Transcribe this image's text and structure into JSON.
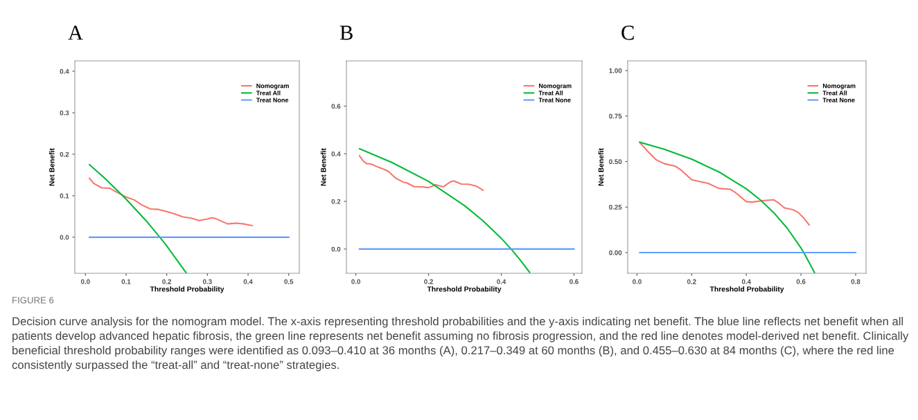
{
  "chart_data": [
    {
      "type": "line",
      "title": "A",
      "xlabel": "Threshold Probability",
      "ylabel": "Net Benefit",
      "legend": "top right",
      "grid": false,
      "xlim": [
        -0.026,
        0.526
      ],
      "xticks": [
        {
          "value": 0,
          "label": "0.0"
        },
        {
          "value": 0.1,
          "label": "0.1"
        },
        {
          "value": 0.2,
          "label": "0.2"
        },
        {
          "value": 0.3,
          "label": "0.3"
        },
        {
          "value": 0.4,
          "label": "0.4"
        },
        {
          "value": 0.5,
          "label": "0.5"
        }
      ],
      "ylim": [
        -0.087,
        0.425
      ],
      "yticks": [
        {
          "value": 0,
          "label": "0.0"
        },
        {
          "value": 0.1,
          "label": "0.1"
        },
        {
          "value": 0.2,
          "label": "0.2"
        },
        {
          "value": 0.3,
          "label": "0.3"
        },
        {
          "value": 0.4,
          "label": "0.4"
        }
      ],
      "series": [
        {
          "name": "Nomogram",
          "color": "#f8766d",
          "x": [
            0.01,
            0.02,
            0.04,
            0.06,
            0.08,
            0.1,
            0.12,
            0.14,
            0.16,
            0.18,
            0.2,
            0.22,
            0.24,
            0.26,
            0.28,
            0.3,
            0.31,
            0.32,
            0.35,
            0.37,
            0.39,
            0.41
          ],
          "values": [
            0.142,
            0.13,
            0.119,
            0.118,
            0.107,
            0.097,
            0.09,
            0.077,
            0.068,
            0.067,
            0.062,
            0.056,
            0.049,
            0.046,
            0.04,
            0.044,
            0.047,
            0.045,
            0.032,
            0.034,
            0.032,
            0.028
          ]
        },
        {
          "name": "Treat All",
          "color": "#00ba38",
          "x": [
            0.01,
            0.05,
            0.1,
            0.15,
            0.183,
            0.2,
            0.248
          ],
          "values": [
            0.175,
            0.14,
            0.092,
            0.039,
            0.0,
            -0.021,
            -0.086
          ]
        },
        {
          "name": "Treat None",
          "color": "#619cff",
          "x": [
            0.01,
            0.5
          ],
          "values": [
            0,
            0
          ]
        }
      ],
      "annotations": [
        "FIGURE 6",
        "Decision curve analysis for the nomogram model. The x-axis representing threshold probabilities and the y-axis indicating net benefit. The blue line reflects net benefit when all patients develop advanced hepatic fibrosis, the green line represents net benefit assuming no fibrosis progression, and the red line denotes model-derived net benefit. Clinically beneficial threshold probability ranges were identified as 0.093–0.410 at 36 months (A), 0.217–0.349 at 60 months (B), and 0.455–0.630 at 84 months (C), where the red line consistently surpassed the “treat-all” and “treat-none” strategies."
      ]
    },
    {
      "type": "line",
      "title": "B",
      "xlabel": "Threshold Probability",
      "ylabel": "Net Benefit",
      "legend": "top right",
      "grid": false,
      "xlim": [
        -0.026,
        0.622
      ],
      "xticks": [
        {
          "value": 0,
          "label": "0.0"
        },
        {
          "value": 0.2,
          "label": "0.2"
        },
        {
          "value": 0.4,
          "label": "0.4"
        },
        {
          "value": 0.6,
          "label": "0.6"
        }
      ],
      "ylim": [
        -0.102,
        0.79
      ],
      "yticks": [
        {
          "value": 0,
          "label": "0.0"
        },
        {
          "value": 0.2,
          "label": "0.2"
        },
        {
          "value": 0.4,
          "label": "0.4"
        },
        {
          "value": 0.6,
          "label": "0.6"
        }
      ],
      "series": [
        {
          "name": "Nomogram",
          "color": "#f8766d",
          "x": [
            0.01,
            0.02,
            0.03,
            0.04,
            0.06,
            0.08,
            0.09,
            0.11,
            0.13,
            0.14,
            0.16,
            0.18,
            0.2,
            0.22,
            0.24,
            0.26,
            0.27,
            0.29,
            0.31,
            0.33,
            0.35
          ],
          "values": [
            0.392,
            0.37,
            0.358,
            0.358,
            0.345,
            0.333,
            0.325,
            0.297,
            0.281,
            0.278,
            0.262,
            0.261,
            0.258,
            0.27,
            0.261,
            0.282,
            0.286,
            0.273,
            0.272,
            0.265,
            0.247
          ]
        },
        {
          "name": "Treat All",
          "color": "#00ba38",
          "x": [
            0.01,
            0.1,
            0.2,
            0.3,
            0.35,
            0.4,
            0.427,
            0.45,
            0.478
          ],
          "values": [
            0.421,
            0.363,
            0.284,
            0.181,
            0.118,
            0.045,
            0.0,
            -0.042,
            -0.098
          ]
        },
        {
          "name": "Treat None",
          "color": "#619cff",
          "x": [
            0.01,
            0.6
          ],
          "values": [
            0,
            0
          ]
        }
      ]
    },
    {
      "type": "line",
      "title": "C",
      "xlabel": "Threshold Probability",
      "ylabel": "Net Benefit",
      "legend": "top right",
      "grid": false,
      "xlim": [
        -0.034,
        0.838
      ],
      "xticks": [
        {
          "value": 0,
          "label": "0.0"
        },
        {
          "value": 0.2,
          "label": "0.2"
        },
        {
          "value": 0.4,
          "label": "0.4"
        },
        {
          "value": 0.6,
          "label": "0.6"
        },
        {
          "value": 0.8,
          "label": "0.8"
        }
      ],
      "ylim": [
        -0.114,
        1.053
      ],
      "yticks": [
        {
          "value": 0,
          "label": "0.00"
        },
        {
          "value": 0.25,
          "label": "0.25"
        },
        {
          "value": 0.5,
          "label": "0.50"
        },
        {
          "value": 0.75,
          "label": "0.75"
        },
        {
          "value": 1,
          "label": "1.00"
        }
      ],
      "series": [
        {
          "name": "Nomogram",
          "color": "#f8766d",
          "x": [
            0.01,
            0.04,
            0.07,
            0.1,
            0.14,
            0.16,
            0.2,
            0.23,
            0.26,
            0.3,
            0.34,
            0.36,
            0.4,
            0.42,
            0.46,
            0.5,
            0.52,
            0.54,
            0.57,
            0.59,
            0.61,
            0.63
          ],
          "values": [
            0.605,
            0.555,
            0.51,
            0.488,
            0.475,
            0.455,
            0.4,
            0.39,
            0.38,
            0.352,
            0.348,
            0.33,
            0.28,
            0.277,
            0.285,
            0.29,
            0.27,
            0.245,
            0.236,
            0.22,
            0.19,
            0.152
          ]
        },
        {
          "name": "Treat All",
          "color": "#00ba38",
          "x": [
            0.01,
            0.1,
            0.2,
            0.3,
            0.4,
            0.45,
            0.5,
            0.55,
            0.6,
            0.61,
            0.64,
            0.65
          ],
          "values": [
            0.606,
            0.567,
            0.513,
            0.443,
            0.35,
            0.291,
            0.22,
            0.133,
            0.025,
            0.0,
            -0.083,
            -0.112
          ]
        },
        {
          "name": "Treat None",
          "color": "#619cff",
          "x": [
            0.01,
            0.8
          ],
          "values": [
            0,
            0
          ]
        }
      ]
    }
  ]
}
